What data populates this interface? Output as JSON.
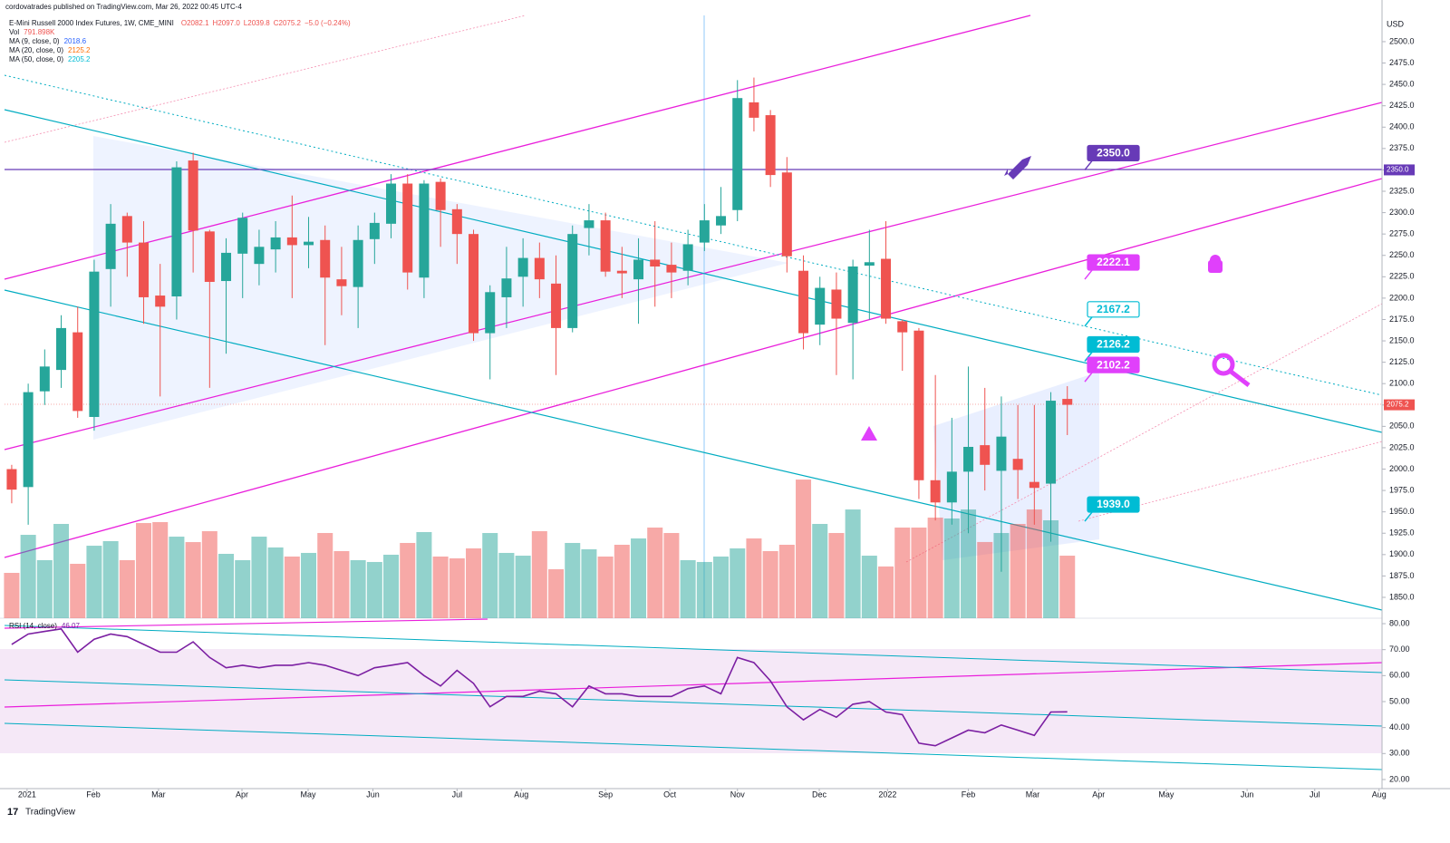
{
  "chart_data": {
    "type": "candlestick",
    "credit": "cordovatrades published on TradingView.com, Mar 26, 2022 00:45 UTC-4",
    "title": "E-Mini Russell 2000 Index Futures, 1W, CME_MINI",
    "ohlc_text": [
      "O2082.1",
      "H2097.0",
      "L2039.8",
      "C2075.2",
      "−5.0 (−0.24%)"
    ],
    "indicators": [
      {
        "name": "Vol",
        "value": "791.898K"
      },
      {
        "name": "MA (9, close, 0)",
        "value": "2018.6"
      },
      {
        "name": "MA (20, close, 0)",
        "value": "2125.2"
      },
      {
        "name": "MA (50, close, 0)",
        "value": "2205.2"
      }
    ],
    "currency": "USD",
    "up_color": "#26a69a",
    "down_color": "#ef5350",
    "open": [
      2000,
      1979,
      2091,
      2116,
      2160,
      2061,
      2234,
      2296,
      2265,
      2203,
      2202,
      2361,
      2278,
      2220,
      2252,
      2240,
      2257,
      2271,
      2262,
      2268,
      2222,
      2213,
      2269,
      2287,
      2334,
      2224,
      2336,
      2304,
      2275,
      2159,
      2201,
      2225,
      2247,
      2217,
      2165,
      2282,
      2291,
      2232,
      2222,
      2245,
      2239,
      2232,
      2265,
      2285,
      2303,
      2429,
      2414,
      2347,
      2232,
      2169,
      2210,
      2171,
      2238,
      2246,
      2173,
      2162,
      1987,
      1961,
      1997,
      2028,
      1998,
      2012,
      1985,
      1983,
      2082.1
    ],
    "high": [
      2005,
      2100,
      2140,
      2180,
      2190,
      2245,
      2310,
      2300,
      2290,
      2240,
      2360,
      2370,
      2280,
      2270,
      2300,
      2280,
      2290,
      2320,
      2295,
      2285,
      2260,
      2285,
      2300,
      2345,
      2345,
      2338,
      2340,
      2310,
      2280,
      2215,
      2260,
      2270,
      2265,
      2250,
      2285,
      2310,
      2300,
      2260,
      2270,
      2290,
      2265,
      2280,
      2310,
      2330,
      2455,
      2458,
      2420,
      2365,
      2250,
      2225,
      2230,
      2245,
      2280,
      2290,
      2175,
      2165,
      2110,
      2060,
      2120,
      2095,
      2085,
      2075,
      2075,
      2090,
      2097.0
    ],
    "low": [
      1960,
      1935,
      2075,
      2095,
      2060,
      2045,
      2190,
      2225,
      2170,
      2085,
      2175,
      2230,
      2095,
      2135,
      2200,
      2215,
      2230,
      2200,
      2235,
      2145,
      2180,
      2165,
      2240,
      2270,
      2210,
      2200,
      2260,
      2240,
      2150,
      2105,
      2165,
      2190,
      2200,
      2110,
      2160,
      2250,
      2225,
      2200,
      2170,
      2190,
      2200,
      2215,
      2255,
      2275,
      2290,
      2395,
      2330,
      2230,
      2140,
      2145,
      2110,
      2105,
      2175,
      2170,
      2115,
      1965,
      1940,
      1935,
      1925,
      1975,
      1880,
      1965,
      1935,
      1915,
      2039.8
    ],
    "close": [
      1976,
      2090,
      2120,
      2165,
      2068,
      2231,
      2287,
      2265,
      2201,
      2190,
      2353,
      2279,
      2219,
      2253,
      2294,
      2260,
      2271,
      2262,
      2266,
      2224,
      2214,
      2268,
      2288,
      2334,
      2230,
      2334,
      2303,
      2275,
      2159,
      2207,
      2223,
      2247,
      2222,
      2165,
      2275,
      2291,
      2231,
      2229,
      2245,
      2237,
      2230,
      2263,
      2291,
      2296,
      2434,
      2411,
      2344,
      2249,
      2159,
      2212,
      2176,
      2237,
      2242,
      2176,
      2160,
      1987,
      1961,
      1997,
      2026,
      2005,
      2038,
      1999,
      1978,
      2080,
      2075.2
    ],
    "volume": [
      574,
      1056,
      735,
      1194,
      689,
      918,
      976,
      735,
      1205,
      1217,
      1033,
      964,
      1102,
      815,
      735,
      1033,
      896,
      781,
      827,
      1079,
      850,
      735,
      712,
      804,
      953,
      1091,
      781,
      758,
      884,
      1079,
      827,
      792,
      1102,
      620,
      953,
      873,
      781,
      930,
      1010,
      1148,
      1079,
      735,
      712,
      781,
      884,
      1010,
      850,
      930,
      1756,
      1194,
      1079,
      1377,
      792,
      655,
      1148,
      1148,
      1274,
      1263,
      1377,
      965,
      1079,
      1194,
      1377,
      1240,
      791.898
    ],
    "rsi_name": "RSI (14, close)",
    "rsi_value": "46.07",
    "rsi": [
      72,
      76,
      77,
      78,
      69,
      74,
      76,
      75,
      72,
      69,
      69,
      73,
      67,
      63,
      64,
      63,
      64,
      64,
      65,
      64,
      62,
      60,
      63,
      64,
      65,
      60,
      56,
      62,
      57,
      48,
      52,
      52,
      54,
      53,
      48,
      56,
      53,
      53,
      52,
      52,
      52,
      55,
      56,
      53,
      67,
      65,
      58,
      48,
      43,
      47,
      44,
      49,
      50,
      46,
      45,
      34,
      33,
      36,
      39,
      38,
      41,
      39,
      37,
      46,
      46.07
    ],
    "rsi_color": "#7b1fa2",
    "xlim": [
      -0.71,
      83.08
    ],
    "xticks": [
      {
        "value": 0.93,
        "label": "2021"
      },
      {
        "value": 4.95,
        "label": "Feb"
      },
      {
        "value": 8.9,
        "label": "Mar"
      },
      {
        "value": 13.96,
        "label": "Apr"
      },
      {
        "value": 17.97,
        "label": "May"
      },
      {
        "value": 21.9,
        "label": "Jun"
      },
      {
        "value": 27.0,
        "label": "Jul"
      },
      {
        "value": 30.9,
        "label": "Aug"
      },
      {
        "value": 36.0,
        "label": "Sep"
      },
      {
        "value": 39.9,
        "label": "Oct"
      },
      {
        "value": 44.0,
        "label": "Nov"
      },
      {
        "value": 48.96,
        "label": "Dec"
      },
      {
        "value": 53.1,
        "label": "2022"
      },
      {
        "value": 58.0,
        "label": "Feb"
      },
      {
        "value": 61.9,
        "label": "Mar"
      },
      {
        "value": 65.9,
        "label": "Apr"
      },
      {
        "value": 70.0,
        "label": "May"
      },
      {
        "value": 74.9,
        "label": "Jun"
      },
      {
        "value": 79.0,
        "label": "Jul"
      },
      {
        "value": 82.9,
        "label": "Aug"
      }
    ],
    "ylim": [
      1825.6,
      2530.7
    ],
    "yticks": [
      {
        "value": 1850,
        "label": "1850.0"
      },
      {
        "value": 1875,
        "label": "1875.0"
      },
      {
        "value": 1900,
        "label": "1900.0"
      },
      {
        "value": 1925,
        "label": "1925.0"
      },
      {
        "value": 1950,
        "label": "1950.0"
      },
      {
        "value": 1975,
        "label": "1975.0"
      },
      {
        "value": 2000,
        "label": "2000.0"
      },
      {
        "value": 2025,
        "label": "2025.0"
      },
      {
        "value": 2050,
        "label": "2050.0"
      },
      {
        "value": 2075,
        "label": "2075.0"
      },
      {
        "value": 2100,
        "label": "2100.0"
      },
      {
        "value": 2125,
        "label": "2125.0"
      },
      {
        "value": 2150,
        "label": "2150.0"
      },
      {
        "value": 2175,
        "label": "2175.0"
      },
      {
        "value": 2200,
        "label": "2200.0"
      },
      {
        "value": 2225,
        "label": "2225.0"
      },
      {
        "value": 2250,
        "label": "2250.0"
      },
      {
        "value": 2275,
        "label": "2275.0"
      },
      {
        "value": 2300,
        "label": "2300.0"
      },
      {
        "value": 2325,
        "label": "2325.0"
      },
      {
        "value": 2350,
        "label": "2350.0"
      },
      {
        "value": 2375,
        "label": "2375.0"
      },
      {
        "value": 2400,
        "label": "2400.0"
      },
      {
        "value": 2425,
        "label": "2425.0"
      },
      {
        "value": 2450,
        "label": "2450.0"
      },
      {
        "value": 2475,
        "label": "2475.0"
      },
      {
        "value": 2500,
        "label": "2500.0"
      }
    ],
    "vlim": [
      0,
      7635
    ],
    "rsi_ylim": [
      16.5,
      82.1
    ],
    "rsi_yticks": [
      {
        "value": 20,
        "label": "20.00"
      },
      {
        "value": 30,
        "label": "30.00"
      },
      {
        "value": 40,
        "label": "40.00"
      },
      {
        "value": 50,
        "label": "50.00"
      },
      {
        "value": 60,
        "label": "60.00"
      },
      {
        "value": 70,
        "label": "70.00"
      },
      {
        "value": 80,
        "label": "80.00"
      }
    ],
    "last_price": {
      "value": 2075.2,
      "label": "2075.2"
    },
    "level_tag": {
      "value": 2350,
      "label": "2350.0"
    },
    "annotations": [
      {
        "value": 2350,
        "label": "2350.0",
        "color": "#673ab7",
        "filled": true
      },
      {
        "value": 2222.1,
        "label": "2222.1",
        "color": "#e040fb",
        "filled": true
      },
      {
        "value": 2167.2,
        "label": "2167.2",
        "color": "#00bcd4",
        "filled": false
      },
      {
        "value": 2126.2,
        "label": "2126.2",
        "color": "#00bcd4",
        "filled": true
      },
      {
        "value": 2102.2,
        "label": "2102.2",
        "color": "#e040fb",
        "filled": true
      },
      {
        "value": 1939.0,
        "label": "1939.0",
        "color": "#00bcd4",
        "filled": true
      }
    ],
    "brand": "TradingView"
  }
}
